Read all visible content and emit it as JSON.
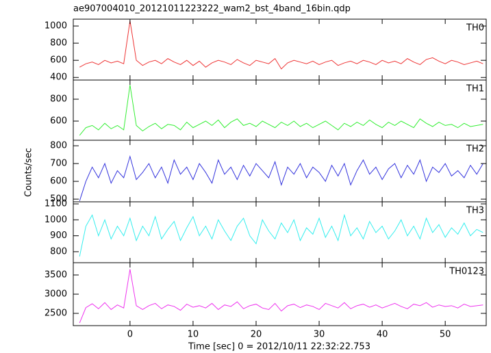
{
  "title": "ae907004010_20121011223222_wam2_bst_4band_16bin.qdp",
  "y_label": "Counts/sec",
  "x_label": "Time [sec] 0 = 2012/10/11 22:32:22.753",
  "chart_data": [
    {
      "type": "line",
      "name": "TH0",
      "color": "#ee3333",
      "x": [
        -8,
        -7,
        -6,
        -5,
        -4,
        -3,
        -2,
        -1,
        0,
        1,
        2,
        3,
        4,
        5,
        6,
        7,
        8,
        9,
        10,
        11,
        12,
        13,
        14,
        15,
        16,
        17,
        18,
        19,
        20,
        21,
        22,
        23,
        24,
        25,
        26,
        27,
        28,
        29,
        30,
        31,
        32,
        33,
        34,
        35,
        36,
        37,
        38,
        39,
        40,
        41,
        42,
        43,
        44,
        45,
        46,
        47,
        48,
        49,
        50,
        51,
        52,
        53,
        54,
        55,
        56
      ],
      "values": [
        520,
        560,
        580,
        550,
        600,
        570,
        590,
        560,
        1060,
        600,
        540,
        580,
        600,
        560,
        620,
        580,
        550,
        600,
        540,
        590,
        520,
        570,
        600,
        580,
        550,
        610,
        570,
        540,
        600,
        580,
        560,
        620,
        500,
        570,
        600,
        580,
        560,
        590,
        550,
        580,
        600,
        540,
        570,
        590,
        560,
        600,
        580,
        550,
        600,
        570,
        590,
        560,
        620,
        580,
        550,
        610,
        630,
        590,
        560,
        600,
        580,
        550,
        570,
        590,
        560
      ],
      "xlim": [
        -9,
        56.5
      ],
      "xticks": [
        0,
        10,
        20,
        30,
        40,
        50
      ],
      "ylim": [
        370,
        1080
      ],
      "yticks": [
        400,
        600,
        800,
        1000
      ]
    },
    {
      "type": "line",
      "name": "TH1",
      "color": "#33ee33",
      "x": [
        -8,
        -7,
        -6,
        -5,
        -4,
        -3,
        -2,
        -1,
        0,
        1,
        2,
        3,
        4,
        5,
        6,
        7,
        8,
        9,
        10,
        11,
        12,
        13,
        14,
        15,
        16,
        17,
        18,
        19,
        20,
        21,
        22,
        23,
        24,
        25,
        26,
        27,
        28,
        29,
        30,
        31,
        32,
        33,
        34,
        35,
        36,
        37,
        38,
        39,
        40,
        41,
        42,
        43,
        44,
        45,
        46,
        47,
        48,
        49,
        50,
        51,
        52,
        53,
        54,
        55,
        56
      ],
      "values": [
        470,
        540,
        560,
        520,
        580,
        530,
        560,
        520,
        930,
        560,
        510,
        550,
        580,
        530,
        570,
        560,
        520,
        590,
        540,
        570,
        600,
        560,
        610,
        540,
        590,
        620,
        560,
        580,
        550,
        600,
        570,
        540,
        590,
        560,
        600,
        550,
        580,
        540,
        570,
        600,
        560,
        520,
        580,
        550,
        590,
        560,
        610,
        570,
        540,
        590,
        560,
        600,
        570,
        540,
        620,
        580,
        550,
        590,
        560,
        570,
        540,
        580,
        550,
        560,
        570
      ],
      "xlim": [
        -9,
        56.5
      ],
      "xticks": [
        0,
        10,
        20,
        30,
        40,
        50
      ],
      "ylim": [
        425,
        975
      ],
      "yticks": [
        600,
        800
      ]
    },
    {
      "type": "line",
      "name": "TH2",
      "color": "#3333dd",
      "x": [
        -8,
        -7,
        -6,
        -5,
        -4,
        -3,
        -2,
        -1,
        0,
        1,
        2,
        3,
        4,
        5,
        6,
        7,
        8,
        9,
        10,
        11,
        12,
        13,
        14,
        15,
        16,
        17,
        18,
        19,
        20,
        21,
        22,
        23,
        24,
        25,
        26,
        27,
        28,
        29,
        30,
        31,
        32,
        33,
        34,
        35,
        36,
        37,
        38,
        39,
        40,
        41,
        42,
        43,
        44,
        45,
        46,
        47,
        48,
        49,
        50,
        51,
        52,
        53,
        54,
        55,
        56
      ],
      "values": [
        490,
        600,
        680,
        620,
        700,
        590,
        660,
        620,
        740,
        610,
        650,
        700,
        620,
        680,
        590,
        720,
        640,
        680,
        610,
        700,
        650,
        590,
        720,
        640,
        680,
        610,
        690,
        630,
        700,
        660,
        620,
        710,
        580,
        680,
        640,
        700,
        620,
        680,
        650,
        600,
        690,
        630,
        700,
        580,
        660,
        720,
        640,
        680,
        610,
        670,
        700,
        620,
        690,
        640,
        720,
        600,
        680,
        650,
        700,
        630,
        660,
        620,
        690,
        640,
        700
      ],
      "xlim": [
        -9,
        56.5
      ],
      "xticks": [
        0,
        10,
        20,
        30,
        40,
        50
      ],
      "ylim": [
        485,
        831
      ],
      "yticks": [
        500,
        600,
        700,
        800
      ]
    },
    {
      "type": "line",
      "name": "TH3",
      "color": "#33eeee",
      "x": [
        -8,
        -7,
        -6,
        -5,
        -4,
        -3,
        -2,
        -1,
        0,
        1,
        2,
        3,
        4,
        5,
        6,
        7,
        8,
        9,
        10,
        11,
        12,
        13,
        14,
        15,
        16,
        17,
        18,
        19,
        20,
        21,
        22,
        23,
        24,
        25,
        26,
        27,
        28,
        29,
        30,
        31,
        32,
        33,
        34,
        35,
        36,
        37,
        38,
        39,
        40,
        41,
        42,
        43,
        44,
        45,
        46,
        47,
        48,
        49,
        50,
        51,
        52,
        53,
        54,
        55,
        56
      ],
      "values": [
        770,
        960,
        1030,
        900,
        1000,
        880,
        960,
        900,
        1010,
        870,
        960,
        900,
        1020,
        880,
        940,
        990,
        870,
        950,
        1020,
        900,
        960,
        880,
        1000,
        930,
        870,
        960,
        1010,
        900,
        850,
        1000,
        930,
        880,
        980,
        920,
        1000,
        870,
        950,
        910,
        1010,
        890,
        960,
        870,
        1030,
        900,
        950,
        880,
        990,
        920,
        960,
        880,
        930,
        1000,
        900,
        960,
        880,
        1010,
        920,
        970,
        890,
        950,
        910,
        980,
        900,
        940,
        920
      ],
      "xlim": [
        -9,
        56.5
      ],
      "xticks": [
        0,
        10,
        20,
        30,
        40,
        50
      ],
      "ylim": [
        731,
        1113
      ],
      "yticks": [
        800,
        900,
        1000,
        1100
      ]
    },
    {
      "type": "line",
      "name": "TH0123",
      "color": "#ee33ee",
      "x": [
        -8,
        -7,
        -6,
        -5,
        -4,
        -3,
        -2,
        -1,
        0,
        1,
        2,
        3,
        4,
        5,
        6,
        7,
        8,
        9,
        10,
        11,
        12,
        13,
        14,
        15,
        16,
        17,
        18,
        19,
        20,
        21,
        22,
        23,
        24,
        25,
        26,
        27,
        28,
        29,
        30,
        31,
        32,
        33,
        34,
        35,
        36,
        37,
        38,
        39,
        40,
        41,
        42,
        43,
        44,
        45,
        46,
        47,
        48,
        49,
        50,
        51,
        52,
        53,
        54,
        55,
        56
      ],
      "values": [
        2250,
        2650,
        2750,
        2620,
        2780,
        2600,
        2720,
        2640,
        3650,
        2700,
        2600,
        2700,
        2760,
        2620,
        2720,
        2680,
        2580,
        2740,
        2660,
        2700,
        2640,
        2760,
        2600,
        2720,
        2680,
        2800,
        2620,
        2700,
        2740,
        2640,
        2600,
        2760,
        2560,
        2700,
        2740,
        2650,
        2720,
        2680,
        2600,
        2760,
        2700,
        2640,
        2780,
        2620,
        2700,
        2740,
        2660,
        2720,
        2640,
        2700,
        2760,
        2680,
        2620,
        2740,
        2700,
        2780,
        2660,
        2720,
        2680,
        2700,
        2640,
        2740,
        2680,
        2700,
        2720
      ],
      "xlim": [
        -9,
        56.5
      ],
      "xticks": [
        0,
        10,
        20,
        30,
        40,
        50
      ],
      "ylim": [
        2180,
        3820
      ],
      "yticks": [
        2500,
        3000,
        3500
      ]
    }
  ]
}
